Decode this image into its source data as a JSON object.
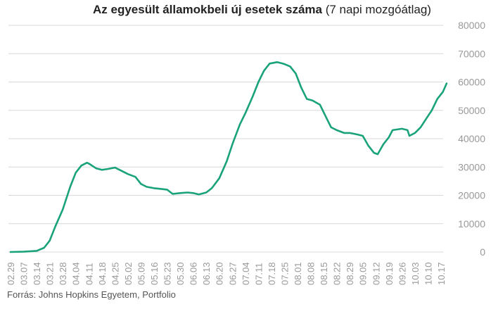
{
  "title": {
    "main": "Az egyesült államokbeli új esetek száma",
    "suffix": "(7 napi mozgóátlag)"
  },
  "source": "Forrás: Johns Hopkins Egyetem, Portfolio",
  "colors": {
    "line": "#1aa37a",
    "grid": "#d8d8d8",
    "tick": "#999999"
  },
  "chart_data": {
    "type": "line",
    "ylim": [
      0,
      80000
    ],
    "y_ticks": [
      0,
      10000,
      20000,
      30000,
      40000,
      50000,
      60000,
      70000,
      80000
    ],
    "x_ticks": [
      "02.29",
      "03.07",
      "03.14",
      "03.21",
      "03.28",
      "04.04",
      "04.11",
      "04.18",
      "04.25",
      "05.02",
      "05.09",
      "05.16",
      "05.23",
      "05.30",
      "06.06",
      "06.13",
      "06.20",
      "06.27",
      "07.04",
      "07.11",
      "07.18",
      "07.25",
      "08.01",
      "08.08",
      "08.15",
      "08.22",
      "08.29",
      "09.05",
      "09.12",
      "09.19",
      "09.26",
      "10.03",
      "10.10",
      "10.17"
    ],
    "series": [
      {
        "values": [
          {
            "x": "02.29",
            "y": 0
          },
          {
            "x": "03.07",
            "y": 100
          },
          {
            "x": "03.14",
            "y": 400
          },
          {
            "x": "03.18",
            "y": 1500
          },
          {
            "x": "03.21",
            "y": 4000
          },
          {
            "x": "03.24",
            "y": 9000
          },
          {
            "x": "03.28",
            "y": 15000
          },
          {
            "x": "04.01",
            "y": 23000
          },
          {
            "x": "04.04",
            "y": 28000
          },
          {
            "x": "04.07",
            "y": 30500
          },
          {
            "x": "04.10",
            "y": 31500
          },
          {
            "x": "04.11",
            "y": 31200
          },
          {
            "x": "04.15",
            "y": 29500
          },
          {
            "x": "04.18",
            "y": 29000
          },
          {
            "x": "04.21",
            "y": 29300
          },
          {
            "x": "04.25",
            "y": 29800
          },
          {
            "x": "04.29",
            "y": 28500
          },
          {
            "x": "05.02",
            "y": 27500
          },
          {
            "x": "05.06",
            "y": 26500
          },
          {
            "x": "05.09",
            "y": 24000
          },
          {
            "x": "05.12",
            "y": 23000
          },
          {
            "x": "05.16",
            "y": 22500
          },
          {
            "x": "05.19",
            "y": 22300
          },
          {
            "x": "05.23",
            "y": 22000
          },
          {
            "x": "05.26",
            "y": 20500
          },
          {
            "x": "05.30",
            "y": 20800
          },
          {
            "x": "06.03",
            "y": 21000
          },
          {
            "x": "06.06",
            "y": 20800
          },
          {
            "x": "06.09",
            "y": 20300
          },
          {
            "x": "06.13",
            "y": 21000
          },
          {
            "x": "06.16",
            "y": 22500
          },
          {
            "x": "06.20",
            "y": 26000
          },
          {
            "x": "06.24",
            "y": 32000
          },
          {
            "x": "06.27",
            "y": 38000
          },
          {
            "x": "07.01",
            "y": 45000
          },
          {
            "x": "07.04",
            "y": 49000
          },
          {
            "x": "07.08",
            "y": 55000
          },
          {
            "x": "07.11",
            "y": 60000
          },
          {
            "x": "07.14",
            "y": 64000
          },
          {
            "x": "07.17",
            "y": 66500
          },
          {
            "x": "07.21",
            "y": 67000
          },
          {
            "x": "07.24",
            "y": 66500
          },
          {
            "x": "07.25",
            "y": 66300
          },
          {
            "x": "07.28",
            "y": 65500
          },
          {
            "x": "07.31",
            "y": 63000
          },
          {
            "x": "08.03",
            "y": 58000
          },
          {
            "x": "08.06",
            "y": 54000
          },
          {
            "x": "08.09",
            "y": 53500
          },
          {
            "x": "08.13",
            "y": 52000
          },
          {
            "x": "08.16",
            "y": 48000
          },
          {
            "x": "08.19",
            "y": 44000
          },
          {
            "x": "08.22",
            "y": 43000
          },
          {
            "x": "08.26",
            "y": 42000
          },
          {
            "x": "08.29",
            "y": 42000
          },
          {
            "x": "09.02",
            "y": 41500
          },
          {
            "x": "09.05",
            "y": 41000
          },
          {
            "x": "09.08",
            "y": 37500
          },
          {
            "x": "09.11",
            "y": 35000
          },
          {
            "x": "09.13",
            "y": 34500
          },
          {
            "x": "09.16",
            "y": 38000
          },
          {
            "x": "09.19",
            "y": 40500
          },
          {
            "x": "09.21",
            "y": 43000
          },
          {
            "x": "09.26",
            "y": 43500
          },
          {
            "x": "09.29",
            "y": 43000
          },
          {
            "x": "09.30",
            "y": 41000
          },
          {
            "x": "10.03",
            "y": 42000
          },
          {
            "x": "10.06",
            "y": 44000
          },
          {
            "x": "10.09",
            "y": 47000
          },
          {
            "x": "10.12",
            "y": 50000
          },
          {
            "x": "10.15",
            "y": 54000
          },
          {
            "x": "10.18",
            "y": 56500
          },
          {
            "x": "10.20",
            "y": 59500
          }
        ]
      }
    ],
    "grid": true,
    "xlabel": "",
    "ylabel": ""
  }
}
